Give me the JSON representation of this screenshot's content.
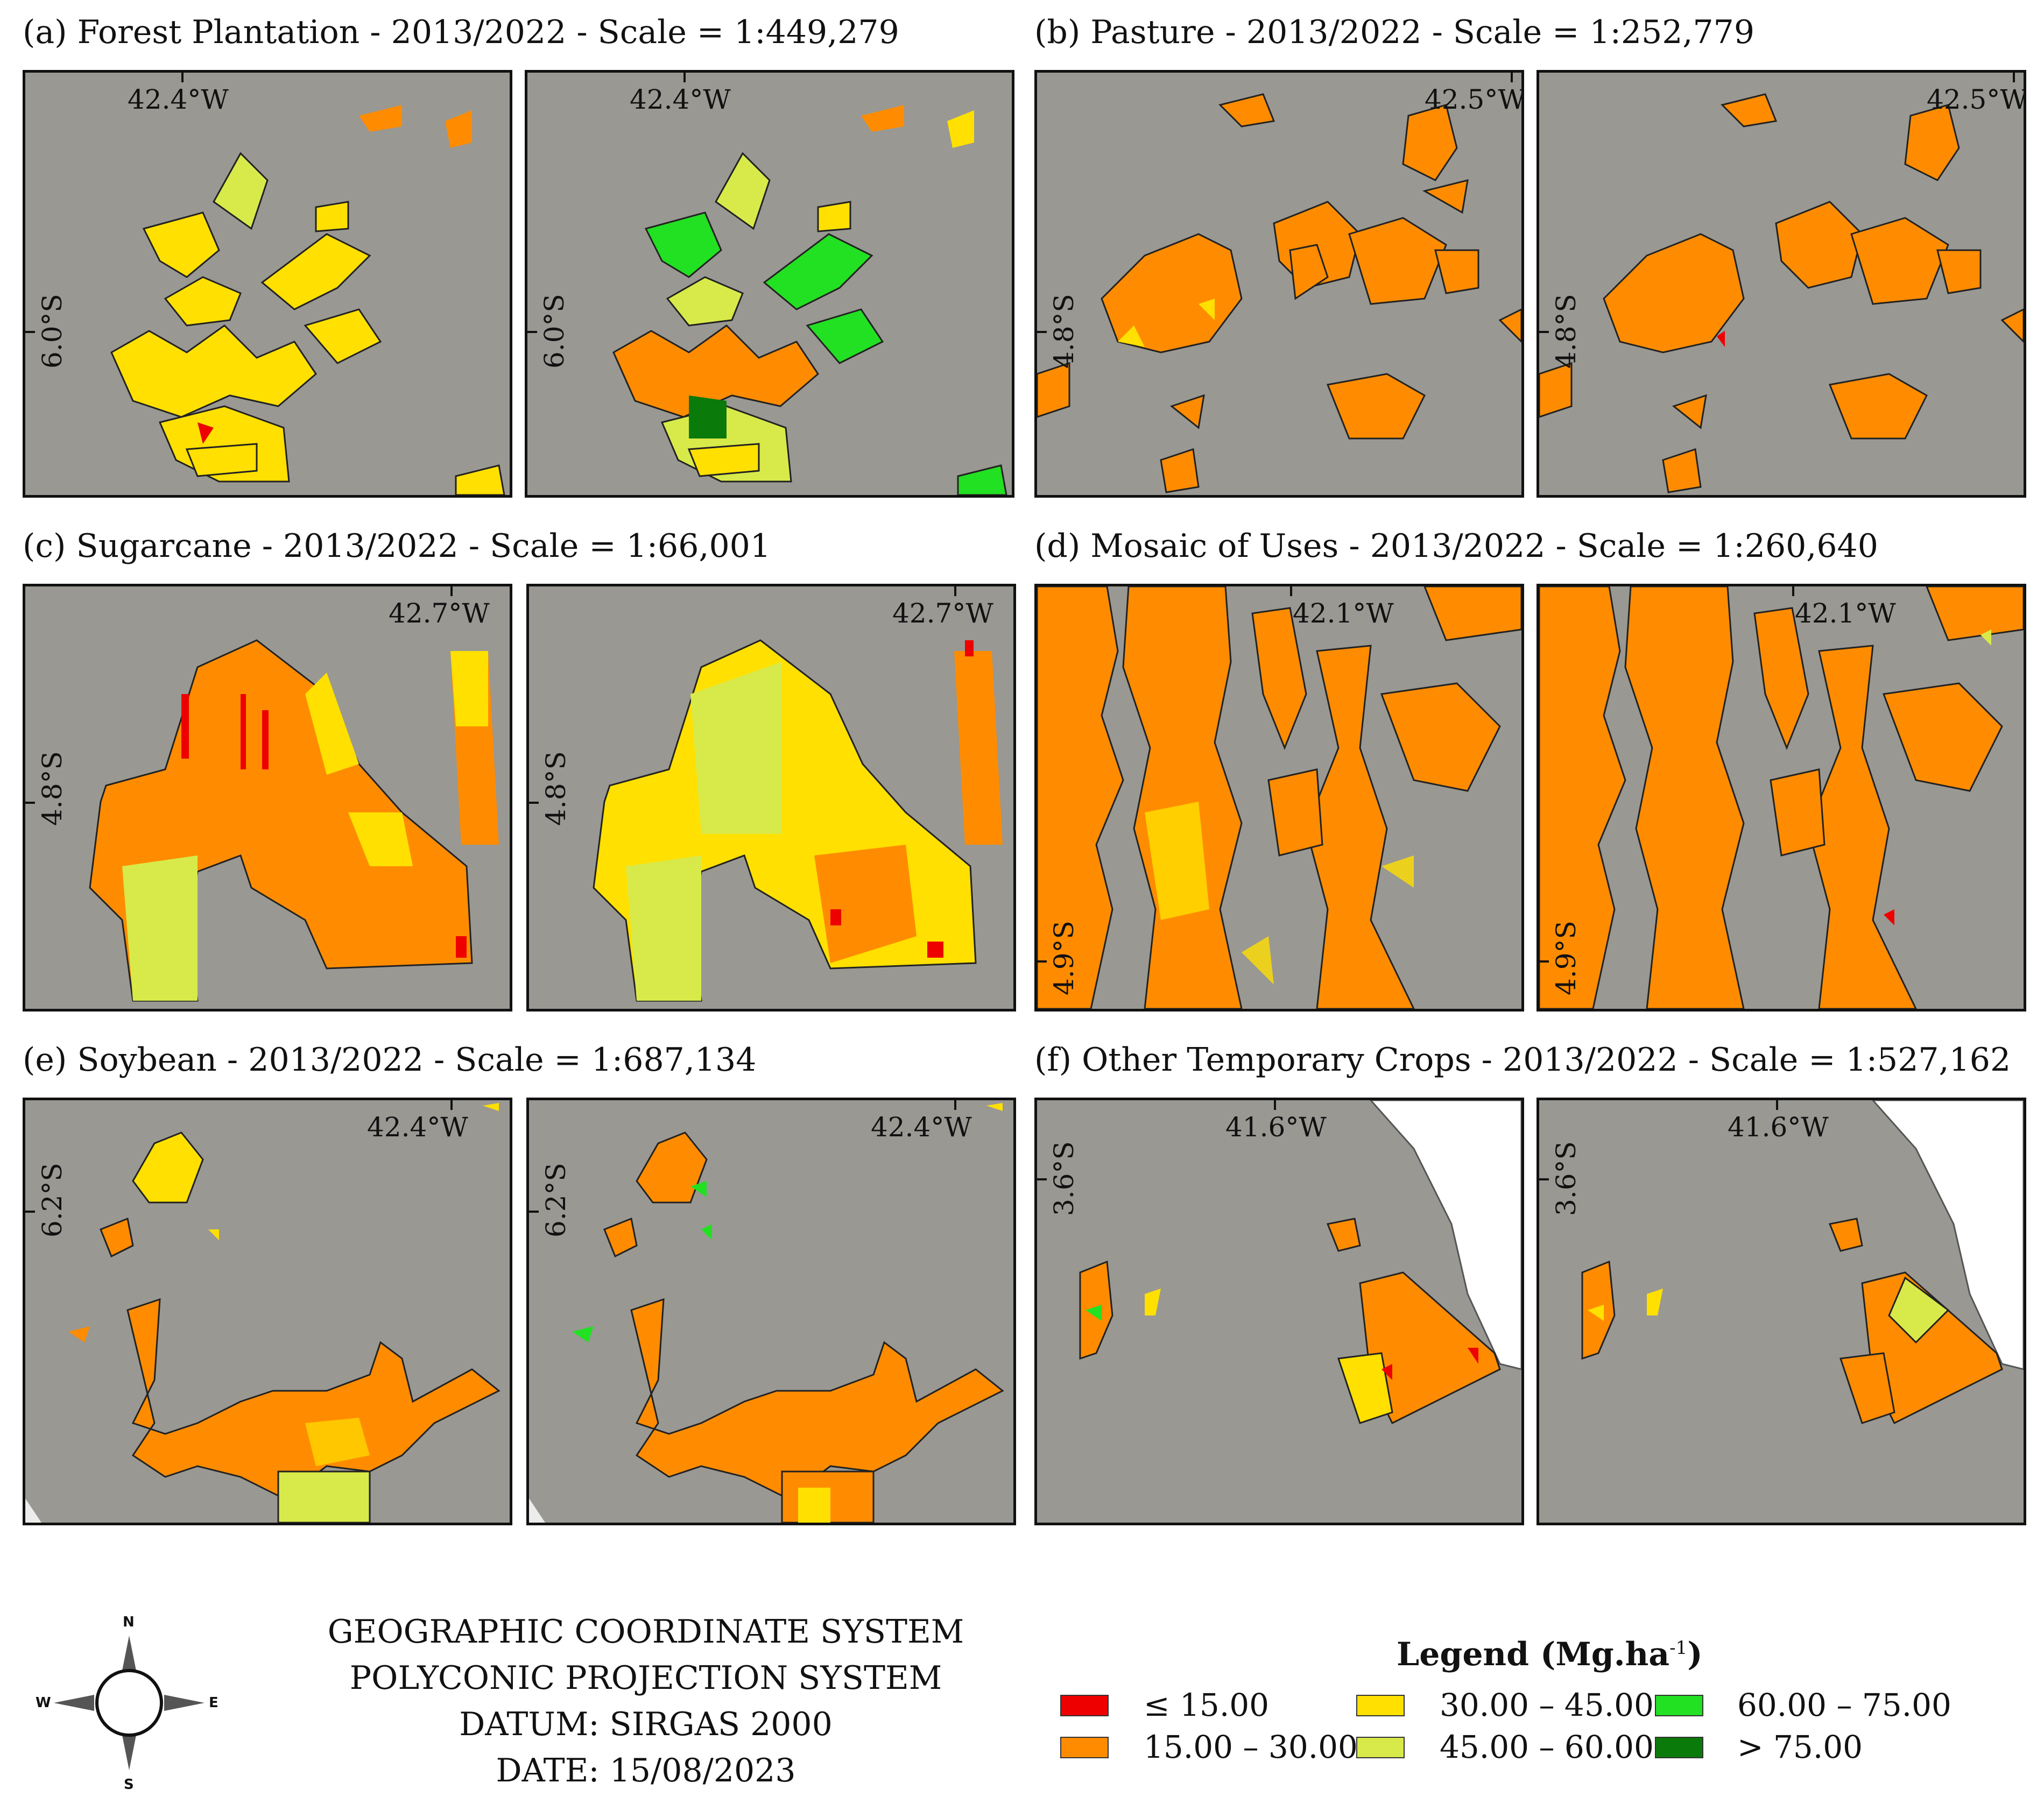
{
  "panels": [
    {
      "id": "a",
      "title": "(a) Forest Plantation - 2013/2022 - Scale = 1:449,279",
      "lon": "42.4°W",
      "lat": "6.0°S",
      "land_type": "forest"
    },
    {
      "id": "b",
      "title": "(b) Pasture - 2013/2022 - Scale = 1:252,779",
      "lon": "42.5°W",
      "lat": "4.8°S",
      "land_type": "pasture"
    },
    {
      "id": "c",
      "title": "(c) Sugarcane - 2013/2022 - Scale = 1:66,001",
      "lon": "42.7°W",
      "lat": "4.8°S",
      "land_type": "sugarcane"
    },
    {
      "id": "d",
      "title": "(d) Mosaic of Uses - 2013/2022 - Scale = 1:260,640",
      "lon": "42.1°W",
      "lat": "4.9°S",
      "land_type": "mosaic"
    },
    {
      "id": "e",
      "title": "(e) Soybean - 2013/2022 - Scale = 1:687,134",
      "lon": "42.4°W",
      "lat": "6.2°S",
      "land_type": "soybean"
    },
    {
      "id": "f",
      "title": "(f) Other Temporary Crops - 2013/2022 - Scale = 1:527,162",
      "lon": "41.6°W",
      "lat": "3.6°S",
      "land_type": "other"
    }
  ],
  "info": {
    "line1": "GEOGRAPHIC COORDINATE SYSTEM",
    "line2": "POLYCONIC PROJECTION SYSTEM",
    "line3": "DATUM: SIRGAS 2000",
    "line4": "DATE: 15/08/2023"
  },
  "compass": {
    "n": "N",
    "s": "S",
    "e": "E",
    "w": "W"
  },
  "legend": {
    "title": "Legend (Mg.ha",
    "unit_sup": "-1",
    "unit_close": ")",
    "classes": [
      {
        "label": "≤ 15.00",
        "color": "#ee0000"
      },
      {
        "label": "15.00 – 30.00",
        "color": "#ff8c00"
      },
      {
        "label": "30.00 – 45.00",
        "color": "#ffe000"
      },
      {
        "label": "45.00 – 60.00",
        "color": "#d8ea4a"
      },
      {
        "label": "60.00 – 75.00",
        "color": "#22e022"
      },
      {
        "label": "> 75.00",
        "color": "#0a7a0a"
      }
    ]
  }
}
